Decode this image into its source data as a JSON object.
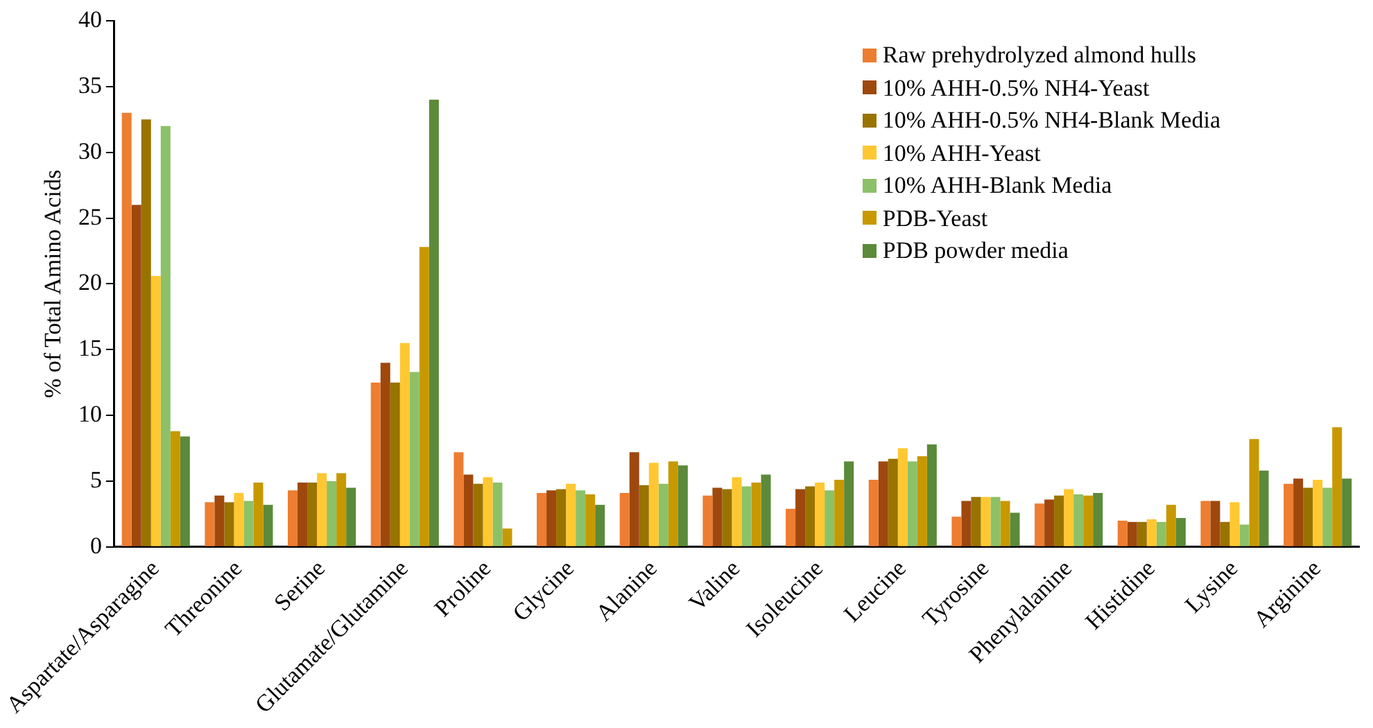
{
  "chart_data": {
    "type": "bar",
    "ylabel": "% of Total Amino Acids",
    "categories": [
      "Aspartate/Asparagine",
      "Threonine",
      "Serine",
      "Glutamate/Glutamine",
      "Proline",
      "Glycine",
      "Alanine",
      "Valine",
      "Isoleucine",
      "Leucine",
      "Tyrosine",
      "Phenylalanine",
      "Histidine",
      "Lysine",
      "Arginine"
    ],
    "series": [
      {
        "name": "Raw prehydrolyzed almond hulls",
        "color": "#ed7d31",
        "values": [
          33,
          3.4,
          4.3,
          12.5,
          7.2,
          4.1,
          4.1,
          3.9,
          2.9,
          5.1,
          2.3,
          3.3,
          2.0,
          3.5,
          4.8
        ]
      },
      {
        "name": "10% AHH-0.5% NH4-Yeast",
        "color": "#9e480e",
        "values": [
          26,
          3.9,
          4.9,
          14,
          5.5,
          4.3,
          7.2,
          4.5,
          4.4,
          6.5,
          3.5,
          3.6,
          1.9,
          3.5,
          5.2
        ]
      },
      {
        "name": "10% AHH-0.5% NH4-Blank Media",
        "color": "#997300",
        "values": [
          32.5,
          3.4,
          4.9,
          12.5,
          4.8,
          4.4,
          4.7,
          4.4,
          4.6,
          6.7,
          3.8,
          3.9,
          1.9,
          1.9,
          4.5
        ]
      },
      {
        "name": "10% AHH-Yeast",
        "color": "#ffc832",
        "values": [
          20.6,
          4.1,
          5.6,
          15.5,
          5.3,
          4.8,
          6.4,
          5.3,
          4.9,
          7.5,
          3.8,
          4.4,
          2.1,
          3.4,
          5.1
        ]
      },
      {
        "name": "10% AHH-Blank Media",
        "color": "#8cc168",
        "values": [
          32,
          3.5,
          5.0,
          13.3,
          4.9,
          4.3,
          4.8,
          4.6,
          4.3,
          6.5,
          3.8,
          4.0,
          1.9,
          1.7,
          4.5
        ]
      },
      {
        "name": "PDB-Yeast",
        "color": "#c89800",
        "values": [
          8.8,
          4.9,
          5.6,
          22.8,
          1.4,
          4.0,
          6.5,
          4.9,
          5.1,
          6.9,
          3.5,
          3.9,
          3.2,
          8.2,
          9.1
        ]
      },
      {
        "name": "PDB powder media",
        "color": "#5b8a3a",
        "values": [
          8.4,
          3.2,
          4.5,
          34,
          null,
          3.2,
          6.2,
          5.5,
          6.5,
          7.8,
          2.6,
          4.1,
          2.2,
          5.8,
          5.2
        ]
      }
    ],
    "ylim": [
      0,
      40
    ],
    "yticks": [
      0,
      5,
      10,
      15,
      20,
      25,
      30,
      35,
      40
    ],
    "grid": false,
    "legend": "top right"
  }
}
